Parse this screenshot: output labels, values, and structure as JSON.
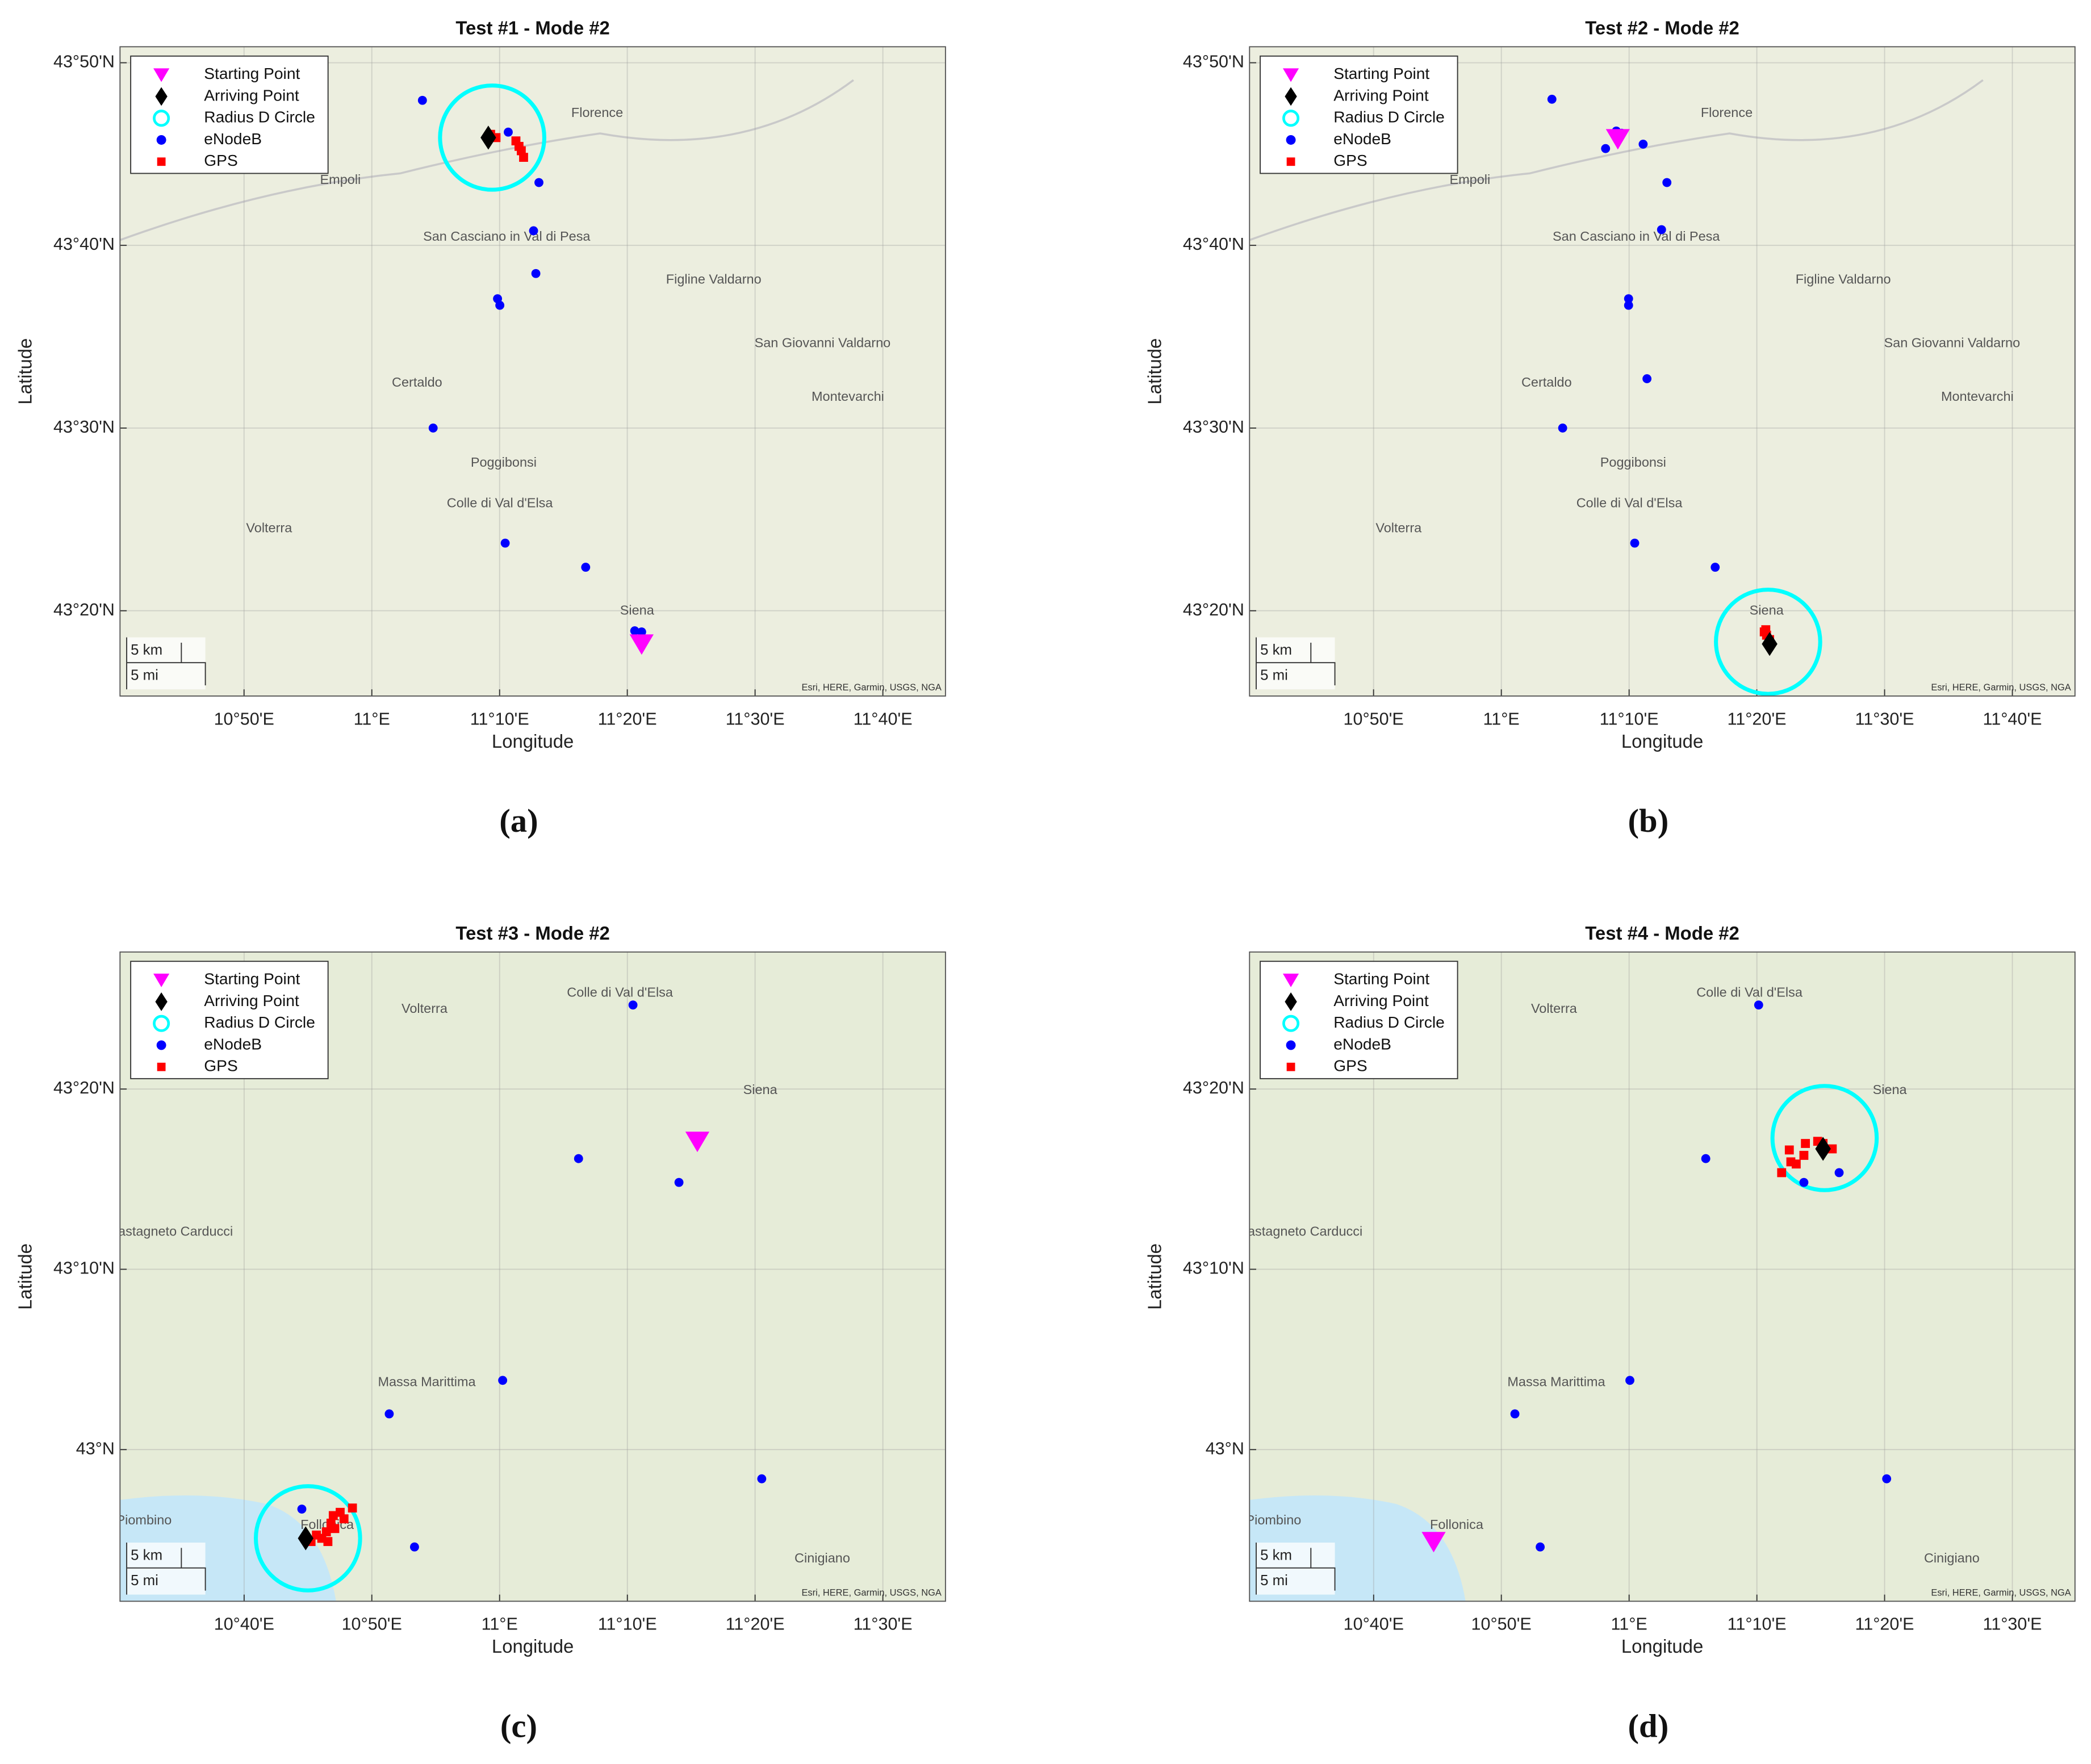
{
  "chart_data": [
    {
      "type": "scatter",
      "title": "Test #1 - Mode #2",
      "panel_label": "(a)",
      "xlabel": "Longitude",
      "ylabel": "Latitude",
      "xlim": [
        10.6715,
        11.7484
      ],
      "ylim": [
        43.2555,
        43.8479
      ],
      "xticks": [
        {
          "value": 10.8333,
          "label": "10°50'E"
        },
        {
          "value": 11,
          "label": "11°E"
        },
        {
          "value": 11.1667,
          "label": "11°10'E"
        },
        {
          "value": 11.3333,
          "label": "11°20'E"
        },
        {
          "value": 11.5,
          "label": "11°30'E"
        },
        {
          "value": 11.6667,
          "label": "11°40'E"
        }
      ],
      "yticks": [
        {
          "value": 43.3333,
          "label": "43°20'N"
        },
        {
          "value": 43.5,
          "label": "43°30'N"
        },
        {
          "value": 43.6667,
          "label": "43°40'N"
        },
        {
          "value": 43.8333,
          "label": "43°50'N"
        }
      ],
      "grid": true,
      "legend": "upper left",
      "series": [
        {
          "name": "Starting Point",
          "color": "#ff00ff",
          "marker": "triangle-down",
          "x": [
            11.352
          ],
          "y": [
            43.303
          ]
        },
        {
          "name": "Arriving Point",
          "color": "#000000",
          "marker": "diamond",
          "x": [
            11.152
          ],
          "y": [
            43.765
          ]
        },
        {
          "name": "Radius D Circle",
          "color": "#00ffff",
          "marker": "circle",
          "x": [
            11.157
          ],
          "y": [
            43.765
          ],
          "radius": [
            0.068
          ]
        },
        {
          "name": "eNodeB",
          "color": "#0000ff",
          "marker": "dot",
          "x": [
            11.066,
            11.178,
            11.218,
            11.211,
            11.214,
            11.164,
            11.167,
            11.08,
            11.174,
            11.279,
            11.343,
            11.352
          ],
          "y": [
            43.799,
            43.77,
            43.724,
            43.68,
            43.641,
            43.618,
            43.612,
            43.5,
            43.395,
            43.373,
            43.315,
            43.314
          ]
        },
        {
          "name": "GPS",
          "color": "#ff0000",
          "marker": "square",
          "x": [
            11.155,
            11.162,
            11.188,
            11.192,
            11.195,
            11.198
          ],
          "y": [
            43.768,
            43.765,
            43.762,
            43.757,
            43.753,
            43.747
          ]
        }
      ],
      "places": [
        {
          "name": "Florence",
          "x": 11.294,
          "y": 43.787
        },
        {
          "name": "Empoli",
          "x": 10.959,
          "y": 43.726
        },
        {
          "name": "San Casciano in Val di Pesa",
          "x": 11.176,
          "y": 43.674
        },
        {
          "name": "Figline Valdarno",
          "x": 11.446,
          "y": 43.635
        },
        {
          "name": "San Giovanni Valdarno",
          "x": 11.588,
          "y": 43.577
        },
        {
          "name": "Montevarchi",
          "x": 11.621,
          "y": 43.528
        },
        {
          "name": "Certaldo",
          "x": 11.059,
          "y": 43.541
        },
        {
          "name": "Poggibonsi",
          "x": 11.172,
          "y": 43.468
        },
        {
          "name": "Colle di Val d'Elsa",
          "x": 11.167,
          "y": 43.431
        },
        {
          "name": "Volterra",
          "x": 10.866,
          "y": 43.408
        },
        {
          "name": "Siena",
          "x": 11.346,
          "y": 43.333
        }
      ],
      "scale_bar": [
        "5 km",
        "5 mi"
      ],
      "attribution": "Esri, HERE, Garmin, USGS, NGA"
    },
    {
      "type": "scatter",
      "title": "Test #2 - Mode #2",
      "panel_label": "(b)",
      "xlabel": "Longitude",
      "ylabel": "Latitude",
      "xlim": [
        10.6715,
        11.7484
      ],
      "ylim": [
        43.2555,
        43.8479
      ],
      "xticks": [
        {
          "value": 10.8333,
          "label": "10°50'E"
        },
        {
          "value": 11,
          "label": "11°E"
        },
        {
          "value": 11.1667,
          "label": "11°10'E"
        },
        {
          "value": 11.3333,
          "label": "11°20'E"
        },
        {
          "value": 11.5,
          "label": "11°30'E"
        },
        {
          "value": 11.6667,
          "label": "11°40'E"
        }
      ],
      "yticks": [
        {
          "value": 43.3333,
          "label": "43°20'N"
        },
        {
          "value": 43.5,
          "label": "43°30'N"
        },
        {
          "value": 43.6667,
          "label": "43°40'N"
        },
        {
          "value": 43.8333,
          "label": "43°50'N"
        }
      ],
      "grid": true,
      "legend": "upper left",
      "series": [
        {
          "name": "Starting Point",
          "color": "#ff00ff",
          "marker": "triangle-down",
          "x": [
            11.152
          ],
          "y": [
            43.764
          ]
        },
        {
          "name": "Arriving Point",
          "color": "#000000",
          "marker": "diamond",
          "x": [
            11.35
          ],
          "y": [
            43.303
          ]
        },
        {
          "name": "Radius D Circle",
          "color": "#00ffff",
          "marker": "circle",
          "x": [
            11.348
          ],
          "y": [
            43.305
          ],
          "radius": [
            0.068
          ]
        },
        {
          "name": "eNodeB",
          "color": "#0000ff",
          "marker": "dot",
          "x": [
            11.066,
            11.15,
            11.157,
            11.136,
            11.185,
            11.216,
            11.209,
            11.166,
            11.166,
            11.19,
            11.08,
            11.174,
            11.279
          ],
          "y": [
            43.8,
            43.771,
            43.769,
            43.755,
            43.759,
            43.724,
            43.681,
            43.618,
            43.612,
            43.545,
            43.5,
            43.395,
            43.373
          ]
        },
        {
          "name": "GPS",
          "color": "#ff0000",
          "marker": "square",
          "x": [
            11.345,
            11.346,
            11.35,
            11.343
          ],
          "y": [
            43.316,
            43.311,
            43.307,
            43.314
          ]
        }
      ],
      "places": [
        {
          "name": "Florence",
          "x": 11.294,
          "y": 43.787
        },
        {
          "name": "Empoli",
          "x": 10.959,
          "y": 43.726
        },
        {
          "name": "San Casciano in Val di Pesa",
          "x": 11.176,
          "y": 43.674
        },
        {
          "name": "Figline Valdarno",
          "x": 11.446,
          "y": 43.635
        },
        {
          "name": "San Giovanni Valdarno",
          "x": 11.588,
          "y": 43.577
        },
        {
          "name": "Montevarchi",
          "x": 11.621,
          "y": 43.528
        },
        {
          "name": "Certaldo",
          "x": 11.059,
          "y": 43.541
        },
        {
          "name": "Poggibonsi",
          "x": 11.172,
          "y": 43.468
        },
        {
          "name": "Colle di Val d'Elsa",
          "x": 11.167,
          "y": 43.431
        },
        {
          "name": "Volterra",
          "x": 10.866,
          "y": 43.408
        },
        {
          "name": "Siena",
          "x": 11.346,
          "y": 43.333
        }
      ],
      "scale_bar": [
        "5 km",
        "5 mi"
      ],
      "attribution": "Esri, HERE, Garmin, USGS, NGA"
    },
    {
      "type": "scatter",
      "title": "Test #3 - Mode #2",
      "panel_label": "(c)",
      "xlabel": "Longitude",
      "ylabel": "Latitude",
      "xlim": [
        10.5048,
        11.5817
      ],
      "ylim": [
        42.8598,
        43.46
      ],
      "xticks": [
        {
          "value": 10.6667,
          "label": "10°40'E"
        },
        {
          "value": 10.8333,
          "label": "10°50'E"
        },
        {
          "value": 11,
          "label": "11°E"
        },
        {
          "value": 11.1667,
          "label": "11°10'E"
        },
        {
          "value": 11.3333,
          "label": "11°20'E"
        },
        {
          "value": 11.5,
          "label": "11°30'E"
        }
      ],
      "yticks": [
        {
          "value": 43,
          "label": "43°N"
        },
        {
          "value": 43.1667,
          "label": "43°10'N"
        },
        {
          "value": 43.3333,
          "label": "43°20'N"
        }
      ],
      "grid": true,
      "legend": "upper left",
      "series": [
        {
          "name": "Starting Point",
          "color": "#ff00ff",
          "marker": "triangle-down",
          "x": [
            11.258
          ],
          "y": [
            43.285
          ]
        },
        {
          "name": "Arriving Point",
          "color": "#000000",
          "marker": "diamond",
          "x": [
            10.747
          ],
          "y": [
            42.918
          ]
        },
        {
          "name": "Radius D Circle",
          "color": "#00ffff",
          "marker": "circle",
          "x": [
            10.75
          ],
          "y": [
            42.918
          ],
          "radius": [
            0.068
          ]
        },
        {
          "name": "eNodeB",
          "color": "#0000ff",
          "marker": "dot",
          "x": [
            11.174,
            11.103,
            11.234,
            11.004,
            10.856,
            11.342,
            10.742,
            10.889
          ],
          "y": [
            43.411,
            43.269,
            43.247,
            43.064,
            43.033,
            42.973,
            42.945,
            42.91
          ]
        },
        {
          "name": "GPS",
          "color": "#ff0000",
          "marker": "square",
          "x": [
            10.754,
            10.761,
            10.768,
            10.774,
            10.78,
            10.783,
            10.792,
            10.797,
            10.808,
            10.776,
            10.785
          ],
          "y": [
            42.915,
            42.921,
            42.918,
            42.924,
            42.932,
            42.939,
            42.942,
            42.936,
            42.946,
            42.915,
            42.927
          ]
        }
      ],
      "places": [
        {
          "name": "Volterra",
          "x": 10.902,
          "y": 43.407
        },
        {
          "name": "Colle di Val d'Elsa",
          "x": 11.157,
          "y": 43.422
        },
        {
          "name": "Siena",
          "x": 11.34,
          "y": 43.332
        },
        {
          "name": "Castagneto Carducci",
          "x": 10.571,
          "y": 43.201
        },
        {
          "name": "Massa Marittima",
          "x": 10.905,
          "y": 43.062
        },
        {
          "name": "Follonica",
          "x": 10.775,
          "y": 42.93
        },
        {
          "name": "Piombino",
          "x": 10.536,
          "y": 42.934
        },
        {
          "name": "Cinigiano",
          "x": 11.421,
          "y": 42.899
        }
      ],
      "scale_bar": [
        "5 km",
        "5 mi"
      ],
      "attribution": "Esri, HERE, Garmin, USGS, NGA"
    },
    {
      "type": "scatter",
      "title": "Test #4 - Mode #2",
      "panel_label": "(d)",
      "xlabel": "Longitude",
      "ylabel": "Latitude",
      "xlim": [
        10.5048,
        11.5817
      ],
      "ylim": [
        42.8598,
        43.46
      ],
      "xticks": [
        {
          "value": 10.6667,
          "label": "10°40'E"
        },
        {
          "value": 10.8333,
          "label": "10°50'E"
        },
        {
          "value": 11,
          "label": "11°E"
        },
        {
          "value": 11.1667,
          "label": "11°10'E"
        },
        {
          "value": 11.3333,
          "label": "11°20'E"
        },
        {
          "value": 11.5,
          "label": "11°30'E"
        }
      ],
      "yticks": [
        {
          "value": 43,
          "label": "43°N"
        },
        {
          "value": 43.1667,
          "label": "43°10'N"
        },
        {
          "value": 43.3333,
          "label": "43°20'N"
        }
      ],
      "grid": true,
      "legend": "upper left",
      "series": [
        {
          "name": "Starting Point",
          "color": "#ff00ff",
          "marker": "triangle-down",
          "x": [
            10.745
          ],
          "y": [
            42.915
          ]
        },
        {
          "name": "Arriving Point",
          "color": "#000000",
          "marker": "diamond",
          "x": [
            11.253
          ],
          "y": [
            43.278
          ]
        },
        {
          "name": "Radius D Circle",
          "color": "#00ffff",
          "marker": "circle",
          "x": [
            11.255
          ],
          "y": [
            43.288
          ],
          "radius": [
            0.068
          ]
        },
        {
          "name": "eNodeB",
          "color": "#0000ff",
          "marker": "dot",
          "x": [
            11.169,
            11.1,
            11.228,
            11.274,
            11.001,
            10.851,
            11.336,
            10.884
          ],
          "y": [
            43.411,
            43.269,
            43.247,
            43.256,
            43.064,
            43.033,
            42.973,
            42.91
          ]
        },
        {
          "name": "GPS",
          "color": "#ff0000",
          "marker": "square",
          "x": [
            11.199,
            11.211,
            11.218,
            11.209,
            11.228,
            11.23,
            11.246,
            11.253,
            11.265
          ],
          "y": [
            43.256,
            43.266,
            43.264,
            43.277,
            43.272,
            43.283,
            43.285,
            43.283,
            43.278
          ]
        }
      ],
      "places": [
        {
          "name": "Volterra",
          "x": 10.902,
          "y": 43.407
        },
        {
          "name": "Colle di Val d'Elsa",
          "x": 11.157,
          "y": 43.422
        },
        {
          "name": "Siena",
          "x": 11.34,
          "y": 43.332
        },
        {
          "name": "Castagneto Carducci",
          "x": 10.571,
          "y": 43.201
        },
        {
          "name": "Massa Marittima",
          "x": 10.905,
          "y": 43.062
        },
        {
          "name": "Follonica",
          "x": 10.775,
          "y": 42.93
        },
        {
          "name": "Piombino",
          "x": 10.536,
          "y": 42.934
        },
        {
          "name": "Cinigiano",
          "x": 11.421,
          "y": 42.899
        }
      ],
      "scale_bar": [
        "5 km",
        "5 mi"
      ],
      "attribution": "Esri, HERE, Garmin, USGS, NGA"
    }
  ]
}
